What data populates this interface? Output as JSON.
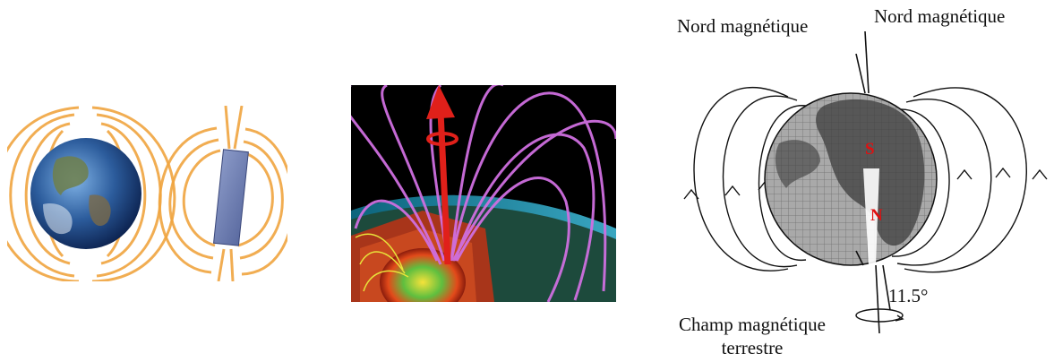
{
  "figure": {
    "panel_a": {
      "earth_icon": "earth-globe-icon",
      "magnet_icon": "bar-magnet-icon",
      "field_color": "#f0a540"
    },
    "panel_b": {
      "background_color": "#000000",
      "field_color": "#cf6fe0",
      "axis_arrow_color": "#e0201a"
    },
    "panel_c": {
      "label_north_left": "Nord magnétique",
      "label_north_right": "Nord magnétique",
      "pole_s": "S",
      "pole_n": "N",
      "angle": "11.5°",
      "label_field_line1": "Champ magnétique",
      "label_field_line2": "terrestre",
      "pole_color": "#e01010"
    }
  }
}
